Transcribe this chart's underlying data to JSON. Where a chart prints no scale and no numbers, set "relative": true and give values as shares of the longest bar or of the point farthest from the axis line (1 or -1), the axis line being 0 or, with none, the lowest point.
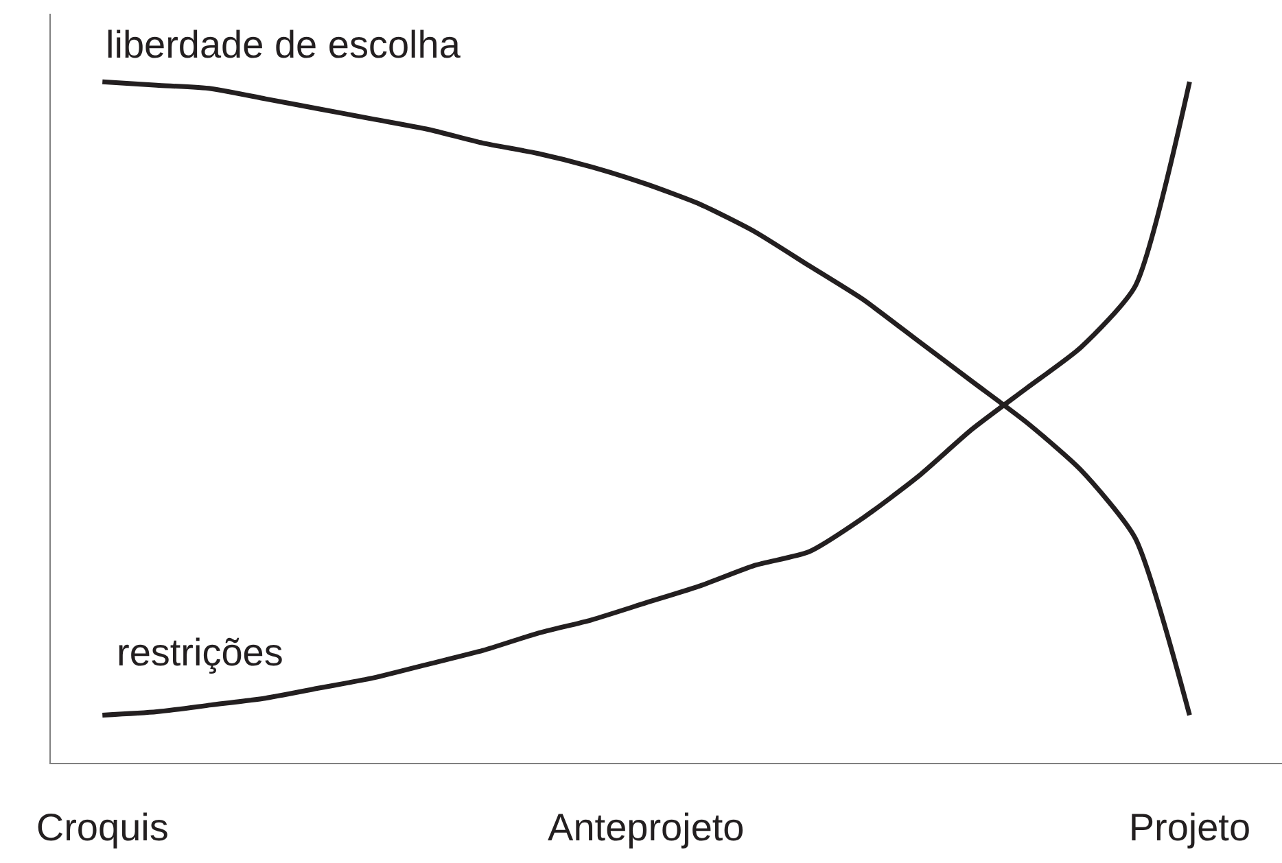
{
  "chart_data": {
    "type": "line",
    "relative": true,
    "categories": [
      "Croquis",
      null,
      null,
      null,
      null,
      null,
      null,
      null,
      null,
      null,
      "Anteprojeto",
      null,
      null,
      null,
      null,
      null,
      null,
      null,
      null,
      null,
      "Projeto"
    ],
    "series": [
      {
        "name": "liberdade de escolha",
        "color": "#231f20",
        "values": [
          1.0,
          0.995,
          0.99,
          0.975,
          0.96,
          0.945,
          0.93,
          0.91,
          0.895,
          0.875,
          0.85,
          0.82,
          0.78,
          0.73,
          0.68,
          0.62,
          0.56,
          0.5,
          0.43,
          0.33,
          0.07
        ]
      },
      {
        "name": "restrições",
        "color": "#231f20",
        "values": [
          0.07,
          0.075,
          0.085,
          0.095,
          0.11,
          0.125,
          0.145,
          0.165,
          0.19,
          0.21,
          0.235,
          0.26,
          0.29,
          0.31,
          0.36,
          0.42,
          0.49,
          0.55,
          0.61,
          0.7,
          1.0
        ]
      }
    ],
    "legend": false,
    "marker": "none",
    "line_style": "solid"
  }
}
